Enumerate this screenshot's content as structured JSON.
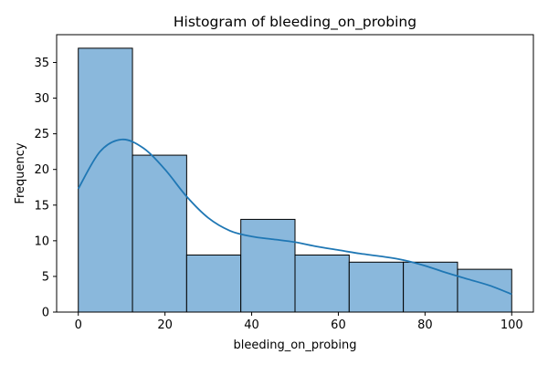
{
  "chart_data": {
    "type": "bar",
    "title": "Histogram of bleeding_on_probing",
    "xlabel": "bleeding_on_probing",
    "ylabel": "Frequency",
    "bins": [
      {
        "start": 0,
        "end": 12.5,
        "count": 37
      },
      {
        "start": 12.5,
        "end": 25,
        "count": 22
      },
      {
        "start": 25,
        "end": 37.5,
        "count": 8
      },
      {
        "start": 37.5,
        "end": 50,
        "count": 13
      },
      {
        "start": 50,
        "end": 62.5,
        "count": 8
      },
      {
        "start": 62.5,
        "end": 75,
        "count": 7
      },
      {
        "start": 75,
        "end": 87.5,
        "count": 7
      },
      {
        "start": 87.5,
        "end": 100,
        "count": 6
      }
    ],
    "kde": {
      "x": [
        0,
        5,
        10,
        15,
        20,
        25,
        30,
        35,
        40,
        45,
        50,
        55,
        60,
        65,
        70,
        75,
        80,
        85,
        90,
        95,
        100
      ],
      "y": [
        17.3,
        22.5,
        24.2,
        23.0,
        20.0,
        16.2,
        13.2,
        11.4,
        10.6,
        10.2,
        9.8,
        9.2,
        8.7,
        8.2,
        7.8,
        7.3,
        6.5,
        5.5,
        4.6,
        3.7,
        2.5
      ]
    },
    "xlim": [
      -5,
      105
    ],
    "ylim": [
      0,
      38.9
    ],
    "xticks": [
      0,
      20,
      40,
      60,
      80,
      100
    ],
    "yticks": [
      0,
      5,
      10,
      15,
      20,
      25,
      30,
      35
    ],
    "bar_color": "#8ab8dc",
    "bar_edge_color": "#000000",
    "line_color": "#1f77b4",
    "grid": false,
    "legend": "none"
  }
}
